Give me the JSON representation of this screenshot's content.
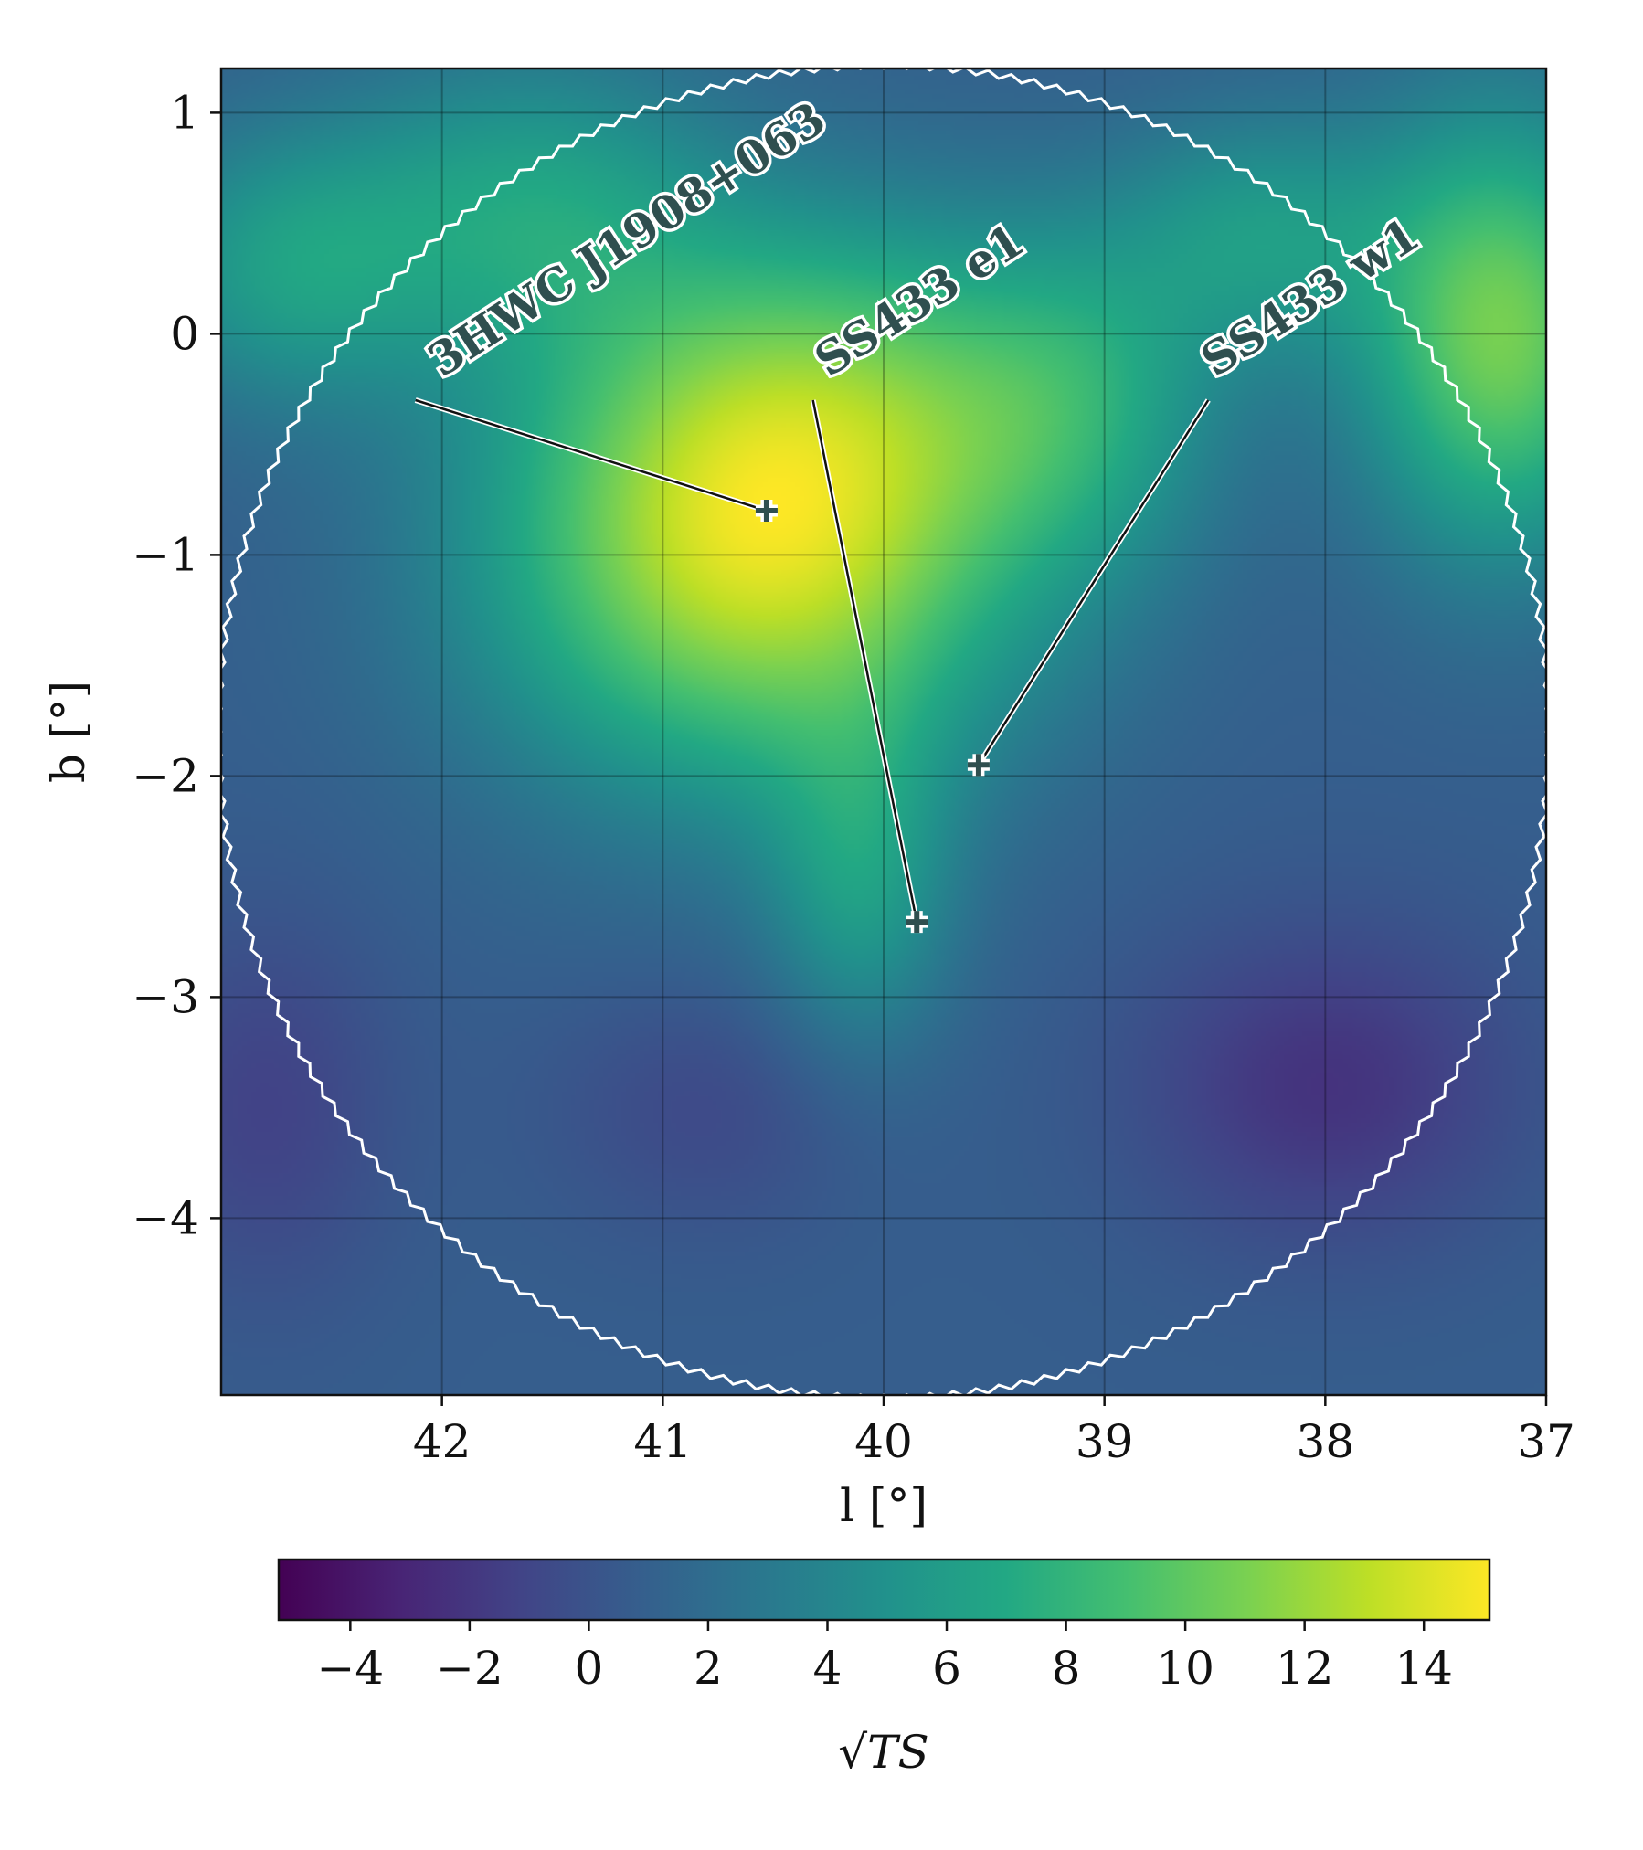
{
  "chart_data": {
    "type": "heatmap",
    "xlabel": "l [°]",
    "ylabel": "b [°]",
    "xlim": [
      43.0,
      37.0
    ],
    "ylim": [
      -4.8,
      1.2
    ],
    "x_ticks": [
      42,
      41,
      40,
      39,
      38,
      37
    ],
    "y_ticks": [
      1,
      0,
      -1,
      -2,
      -3,
      -4
    ],
    "x_tick_labels": [
      "42",
      "41",
      "40",
      "39",
      "38",
      "37"
    ],
    "y_tick_labels": [
      "1",
      "0",
      "−1",
      "−2",
      "−3",
      "−4"
    ],
    "grid": true,
    "colormap": "viridis",
    "colorbar": {
      "label": "√TS",
      "range": [
        -5.2,
        15.1
      ],
      "ticks": [
        -4,
        -2,
        0,
        2,
        4,
        6,
        8,
        10,
        12,
        14
      ],
      "tick_labels": [
        "−4",
        "−2",
        "0",
        "2",
        "4",
        "6",
        "8",
        "10",
        "12",
        "14"
      ]
    },
    "field_components": [
      {
        "l": 40.6,
        "b": -1.0,
        "amplitude": 12.0,
        "sigma_l": 0.85,
        "sigma_b": 0.75
      },
      {
        "l": 40.15,
        "b": -0.2,
        "amplitude": 5.0,
        "sigma_l": 0.8,
        "sigma_b": 0.6
      },
      {
        "l": 40.1,
        "b": -2.5,
        "amplitude": 4.5,
        "sigma_l": 0.3,
        "sigma_b": 0.55
      },
      {
        "l": 41.6,
        "b": 0.6,
        "amplitude": 5.0,
        "sigma_l": 0.6,
        "sigma_b": 0.5
      },
      {
        "l": 42.7,
        "b": 0.3,
        "amplitude": 5.0,
        "sigma_l": 0.5,
        "sigma_b": 0.45
      },
      {
        "l": 37.2,
        "b": 0.0,
        "amplitude": 10.0,
        "sigma_l": 0.45,
        "sigma_b": 0.7
      },
      {
        "l": 38.3,
        "b": 0.45,
        "amplitude": 4.5,
        "sigma_l": 0.45,
        "sigma_b": 0.4
      },
      {
        "l": 39.1,
        "b": -0.3,
        "amplitude": 4.0,
        "sigma_l": 0.45,
        "sigma_b": 0.55
      },
      {
        "l": 38.0,
        "b": -3.4,
        "amplitude": -3.0,
        "sigma_l": 0.6,
        "sigma_b": 0.5
      },
      {
        "l": 42.8,
        "b": -3.5,
        "amplitude": -2.0,
        "sigma_l": 0.4,
        "sigma_b": 0.6
      },
      {
        "l": 40.8,
        "b": -3.5,
        "amplitude": -1.5,
        "sigma_l": 0.5,
        "sigma_b": 0.4
      }
    ],
    "field_baseline": 0.8,
    "roi_circle": {
      "center_l": 40.0,
      "center_b": -1.8,
      "radius_deg": 3.0
    },
    "sources": [
      {
        "name": "3HWC J1908+063",
        "l": 40.53,
        "b": -0.8,
        "label_l": 42.0,
        "label_b": -0.2,
        "leader_l": 42.12,
        "leader_b": -0.3,
        "angle": -33
      },
      {
        "name": "SS433 e1",
        "l": 39.85,
        "b": -2.66,
        "label_l": 40.25,
        "label_b": -0.2,
        "leader_l": 40.32,
        "leader_b": -0.3,
        "angle": -33
      },
      {
        "name": "SS433 w1",
        "l": 39.57,
        "b": -1.95,
        "label_l": 38.5,
        "label_b": -0.2,
        "leader_l": 38.53,
        "leader_b": -0.3,
        "angle": -33
      }
    ]
  }
}
